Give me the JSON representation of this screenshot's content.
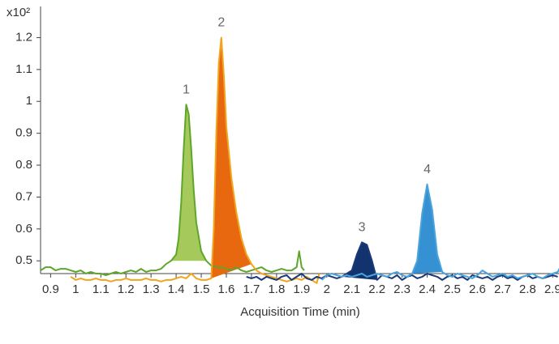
{
  "chart_data": {
    "type": "line",
    "y_unit_label": "x10²",
    "x_label": "Acquisition Time (min)",
    "xlim": [
      0.86,
      2.925
    ],
    "ylim": [
      0.46,
      1.29
    ],
    "xticks": [
      0.9,
      1,
      1.1,
      1.2,
      1.3,
      1.4,
      1.5,
      1.6,
      1.7,
      1.8,
      1.9,
      2,
      2.1,
      2.2,
      2.3,
      2.4,
      2.5,
      2.6,
      2.7,
      2.8,
      2.9
    ],
    "yticks": [
      0.5,
      0.6,
      0.7,
      0.8,
      0.9,
      1,
      1.1,
      1.2
    ],
    "peak_labels": [
      "1",
      "2",
      "3",
      "4"
    ],
    "series": [
      {
        "color": "#5ea62a",
        "fill": "#a5c95a",
        "x": [
          0.86,
          0.88,
          0.9,
          0.92,
          0.94,
          0.96,
          0.98,
          1.0,
          1.02,
          1.04,
          1.06,
          1.08,
          1.1,
          1.12,
          1.14,
          1.16,
          1.18,
          1.2,
          1.22,
          1.24,
          1.26,
          1.28,
          1.3,
          1.32,
          1.34,
          1.36,
          1.38,
          1.4,
          1.41,
          1.42,
          1.43,
          1.44,
          1.45,
          1.46,
          1.47,
          1.48,
          1.5,
          1.52,
          1.54,
          1.56,
          1.58,
          1.6,
          1.62,
          1.64,
          1.66,
          1.68,
          1.7,
          1.72,
          1.74,
          1.76,
          1.78,
          1.8,
          1.82,
          1.84,
          1.86,
          1.88,
          1.89,
          1.9,
          1.91
        ],
        "values": [
          0.47,
          0.48,
          0.48,
          0.47,
          0.475,
          0.475,
          0.47,
          0.465,
          0.47,
          0.46,
          0.465,
          0.46,
          0.46,
          0.455,
          0.46,
          0.465,
          0.46,
          0.465,
          0.47,
          0.465,
          0.475,
          0.465,
          0.47,
          0.47,
          0.475,
          0.49,
          0.5,
          0.52,
          0.57,
          0.68,
          0.85,
          0.99,
          0.96,
          0.85,
          0.72,
          0.62,
          0.53,
          0.5,
          0.485,
          0.48,
          0.48,
          0.475,
          0.47,
          0.48,
          0.47,
          0.465,
          0.47,
          0.475,
          0.48,
          0.47,
          0.465,
          0.47,
          0.475,
          0.47,
          0.47,
          0.48,
          0.53,
          0.48,
          0.47
        ]
      },
      {
        "color": "#f2a41c",
        "fill": "#e8680f",
        "x": [
          0.98,
          1.0,
          1.02,
          1.04,
          1.06,
          1.08,
          1.1,
          1.12,
          1.14,
          1.16,
          1.18,
          1.2,
          1.22,
          1.24,
          1.26,
          1.28,
          1.3,
          1.32,
          1.34,
          1.36,
          1.38,
          1.4,
          1.42,
          1.44,
          1.46,
          1.48,
          1.5,
          1.52,
          1.54,
          1.55,
          1.56,
          1.57,
          1.58,
          1.59,
          1.6,
          1.62,
          1.64,
          1.66,
          1.68,
          1.7,
          1.72,
          1.74,
          1.76,
          1.78,
          1.8,
          1.82,
          1.84,
          1.86,
          1.88,
          1.9,
          1.92,
          1.94,
          1.96,
          1.97
        ],
        "values": [
          0.45,
          0.44,
          0.445,
          0.44,
          0.44,
          0.445,
          0.44,
          0.44,
          0.435,
          0.44,
          0.44,
          0.445,
          0.44,
          0.44,
          0.44,
          0.445,
          0.44,
          0.44,
          0.435,
          0.44,
          0.44,
          0.445,
          0.45,
          0.445,
          0.46,
          0.445,
          0.44,
          0.44,
          0.445,
          0.6,
          0.9,
          1.12,
          1.2,
          1.08,
          0.92,
          0.76,
          0.65,
          0.57,
          0.52,
          0.49,
          0.47,
          0.46,
          0.455,
          0.45,
          0.445,
          0.44,
          0.435,
          0.44,
          0.445,
          0.44,
          0.45,
          0.44,
          0.43,
          0.46
        ]
      },
      {
        "color": "#1b3a78",
        "fill": "#13336f",
        "x": [
          1.68,
          1.7,
          1.72,
          1.74,
          1.76,
          1.78,
          1.8,
          1.82,
          1.84,
          1.86,
          1.88,
          1.9,
          1.92,
          1.94,
          1.96,
          1.98,
          2.0,
          2.02,
          2.04,
          2.06,
          2.08,
          2.1,
          2.12,
          2.14,
          2.16,
          2.18,
          2.2,
          2.22,
          2.24,
          2.26,
          2.28,
          2.3,
          2.32,
          2.34,
          2.36,
          2.38,
          2.4,
          2.42,
          2.44,
          2.46,
          2.48,
          2.5,
          2.52,
          2.54,
          2.56,
          2.58,
          2.6,
          2.62,
          2.64,
          2.66,
          2.68,
          2.7,
          2.72,
          2.74,
          2.76,
          2.78,
          2.8,
          2.82,
          2.84,
          2.86,
          2.88,
          2.9,
          2.92
        ],
        "values": [
          0.45,
          0.445,
          0.45,
          0.44,
          0.45,
          0.445,
          0.44,
          0.45,
          0.455,
          0.44,
          0.45,
          0.46,
          0.445,
          0.44,
          0.45,
          0.445,
          0.455,
          0.45,
          0.445,
          0.45,
          0.46,
          0.47,
          0.52,
          0.558,
          0.55,
          0.5,
          0.44,
          0.455,
          0.45,
          0.445,
          0.455,
          0.44,
          0.45,
          0.455,
          0.445,
          0.45,
          0.46,
          0.455,
          0.45,
          0.44,
          0.45,
          0.455,
          0.445,
          0.45,
          0.44,
          0.455,
          0.45,
          0.445,
          0.45,
          0.44,
          0.45,
          0.455,
          0.445,
          0.45,
          0.44,
          0.45,
          0.455,
          0.445,
          0.45,
          0.445,
          0.45,
          0.455,
          0.45
        ]
      },
      {
        "color": "#4aa3dc",
        "fill": "#3591d2",
        "x": [
          1.98,
          2.0,
          2.02,
          2.04,
          2.06,
          2.08,
          2.1,
          2.12,
          2.14,
          2.16,
          2.18,
          2.2,
          2.22,
          2.24,
          2.26,
          2.28,
          2.3,
          2.32,
          2.34,
          2.36,
          2.38,
          2.4,
          2.42,
          2.44,
          2.46,
          2.48,
          2.5,
          2.52,
          2.54,
          2.56,
          2.58,
          2.6,
          2.62,
          2.64,
          2.66,
          2.68,
          2.7,
          2.72,
          2.74,
          2.76,
          2.78,
          2.8,
          2.82,
          2.84,
          2.86,
          2.88,
          2.9,
          2.92,
          2.93
        ],
        "values": [
          0.44,
          0.455,
          0.46,
          0.455,
          0.45,
          0.455,
          0.45,
          0.455,
          0.46,
          0.45,
          0.455,
          0.46,
          0.455,
          0.45,
          0.46,
          0.465,
          0.455,
          0.45,
          0.46,
          0.5,
          0.65,
          0.74,
          0.66,
          0.52,
          0.465,
          0.455,
          0.45,
          0.46,
          0.455,
          0.45,
          0.445,
          0.455,
          0.47,
          0.46,
          0.45,
          0.455,
          0.46,
          0.45,
          0.455,
          0.445,
          0.45,
          0.455,
          0.46,
          0.45,
          0.445,
          0.455,
          0.46,
          0.465,
          0.48
        ]
      }
    ]
  }
}
